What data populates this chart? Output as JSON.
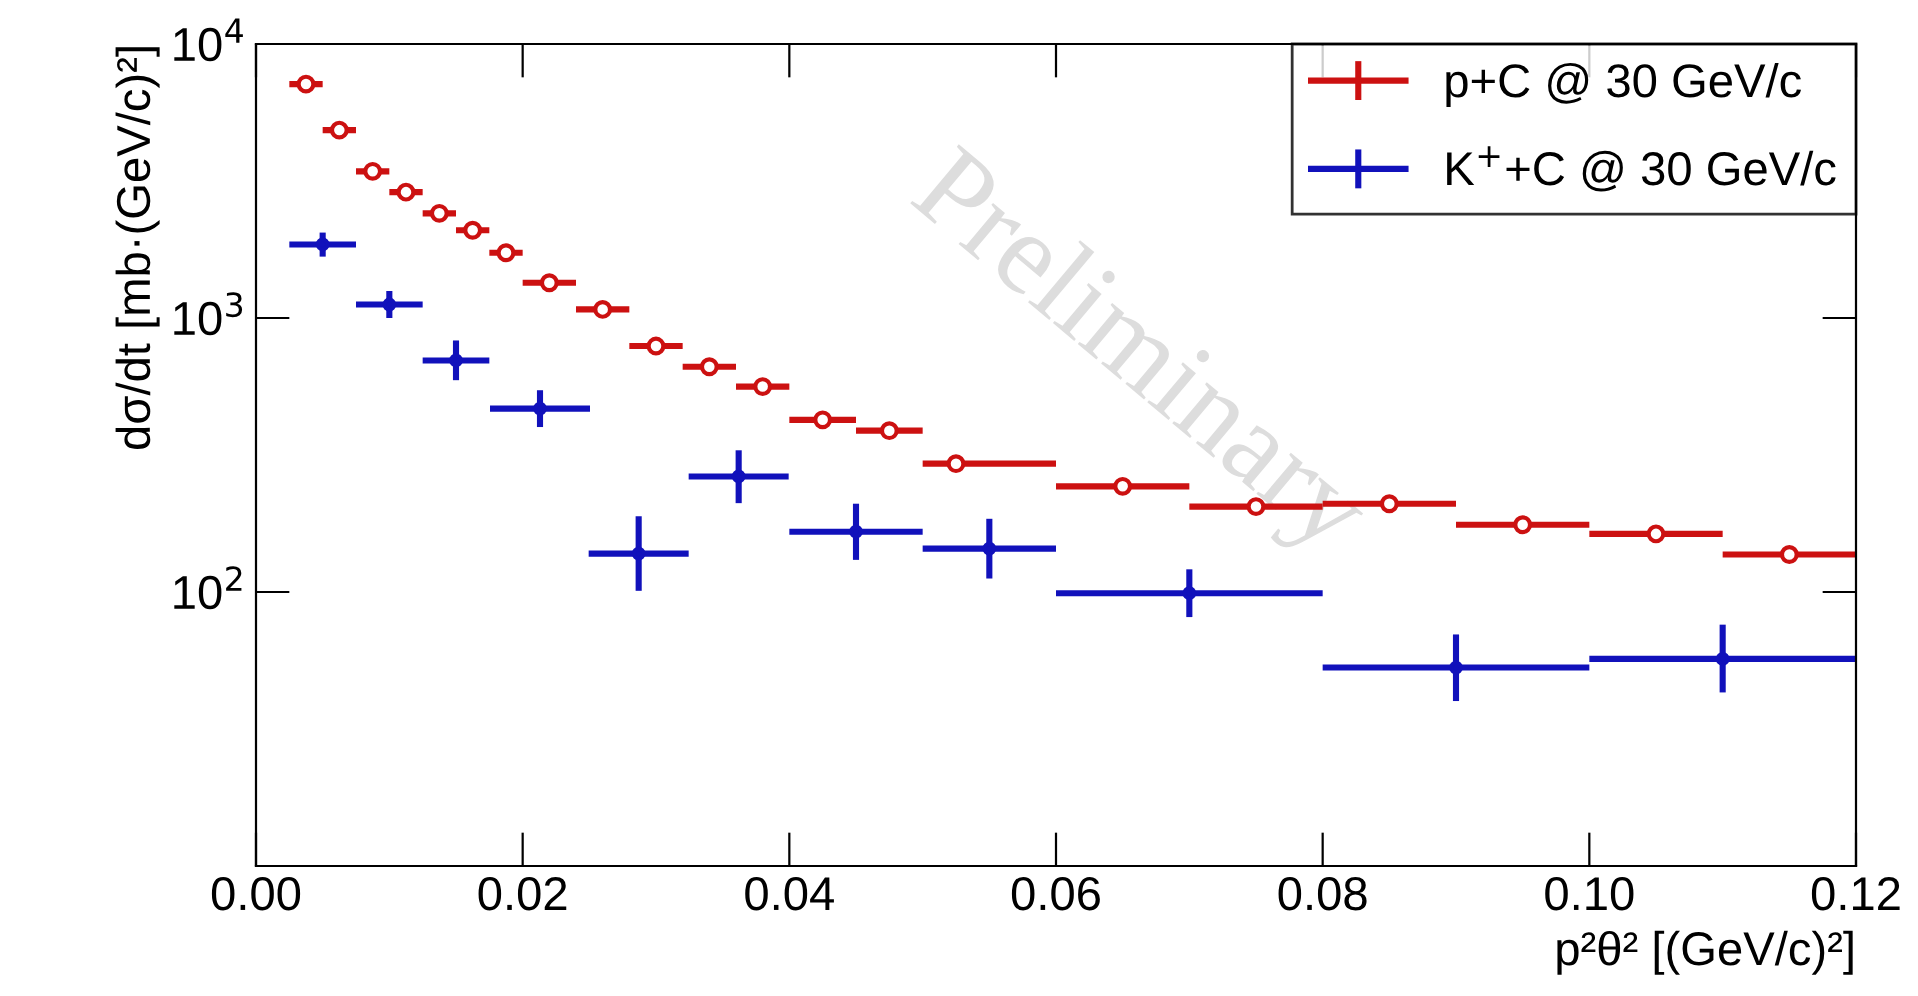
{
  "chart_data": {
    "type": "scatter",
    "xlabel": "p²θ² [(GeV/c)²]",
    "ylabel": "dσ/dt [mb·(GeV/c)²]",
    "annotations": [
      "Preliminary"
    ],
    "log": "y",
    "xlim": [
      0,
      0.12
    ],
    "xticks": [
      {
        "value": 0,
        "label": "0.00"
      },
      {
        "value": 0.02,
        "label": "0.02"
      },
      {
        "value": 0.04,
        "label": "0.04"
      },
      {
        "value": 0.06,
        "label": "0.06"
      },
      {
        "value": 0.08,
        "label": "0.08"
      },
      {
        "value": 0.1,
        "label": "0.10"
      },
      {
        "value": 0.12,
        "label": "0.12"
      }
    ],
    "ylim": [
      10,
      10000
    ],
    "yticks": [
      {
        "value": 100,
        "label": "10$^{2}$"
      },
      {
        "value": 1000,
        "label": "10$^{3}$"
      },
      {
        "value": 10000,
        "label": "10$^{4}$"
      }
    ],
    "grid": false,
    "legend": "top right",
    "series": [
      {
        "name": "p+C @ 30 GeV/c",
        "color": "#cc1111",
        "marker": "circle",
        "x": [
          0.00375,
          0.00625,
          0.00875,
          0.01125,
          0.01375,
          0.01625,
          0.01875,
          0.022,
          0.026,
          0.03,
          0.034,
          0.038,
          0.0425,
          0.0475,
          0.0525,
          0.065,
          0.075,
          0.085,
          0.095,
          0.105,
          0.115
        ],
        "values": [
          7140,
          4850,
          3430,
          2880,
          2410,
          2090,
          1730,
          1345,
          1075,
          790,
          664,
          562,
          425,
          388,
          294,
          243,
          205,
          210,
          176,
          163,
          137
        ],
        "xerrors": [
          0.00125,
          0.00125,
          0.00125,
          0.00125,
          0.00125,
          0.00125,
          0.00125,
          0.002,
          0.002,
          0.002,
          0.002,
          0.002,
          0.0025,
          0.0025,
          [
            0.05,
            0.06
          ],
          0.005,
          0.005,
          0.005,
          0.005,
          0.005,
          0.005
        ]
      },
      {
        "name": "K$^{+}$+C @ 30 GeV/c",
        "color": "#1111bb",
        "marker": "circle",
        "x": [
          0.005,
          0.01,
          0.015,
          0.0213,
          0.0287,
          0.0362,
          0.045,
          0.055,
          0.07,
          0.09,
          0.11
        ],
        "values": [
          1855,
          1120,
          700,
          467,
          138,
          264,
          166,
          144,
          99,
          53,
          57
        ],
        "xerrors": [
          0.0025,
          0.0025,
          0.0025,
          0.00375,
          0.00375,
          0.00375,
          0.005,
          0.005,
          0.01,
          0.01,
          0.01
        ],
        "errors": [
          [
            1675,
            2050
          ],
          [
            1000,
            1255
          ],
          [
            593,
            828
          ],
          [
            400,
            545
          ],
          [
            101,
            189
          ],
          [
            211,
            329
          ],
          [
            131,
            210
          ],
          [
            112,
            185
          ],
          [
            81,
            121
          ],
          [
            40,
            70
          ],
          [
            43,
            76
          ]
        ]
      }
    ]
  }
}
